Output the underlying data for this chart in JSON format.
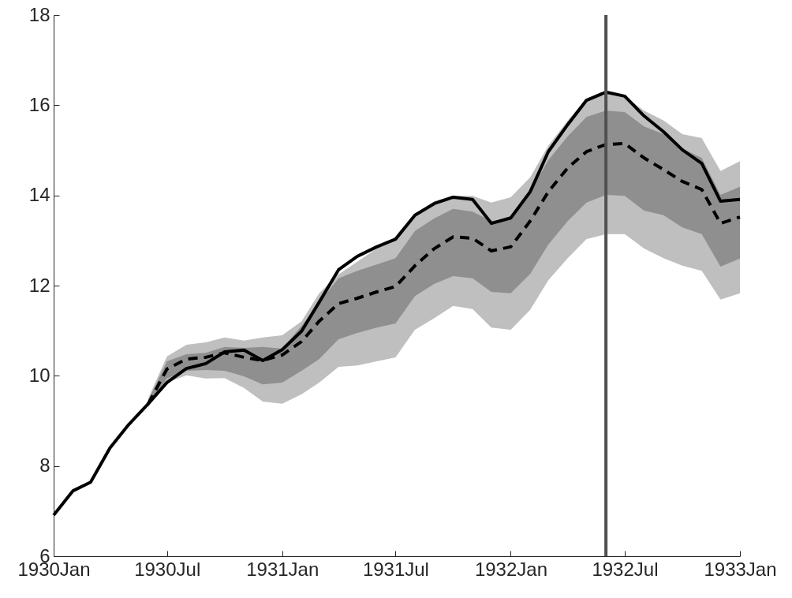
{
  "chart_data": {
    "type": "line",
    "x": [
      "1930-01",
      "1930-02",
      "1930-03",
      "1930-04",
      "1930-05",
      "1930-06",
      "1930-07",
      "1930-08",
      "1930-09",
      "1930-10",
      "1930-11",
      "1930-12",
      "1931-01",
      "1931-02",
      "1931-03",
      "1931-04",
      "1931-05",
      "1931-06",
      "1931-07",
      "1931-08",
      "1931-09",
      "1931-10",
      "1931-11",
      "1931-12",
      "1932-01",
      "1932-02",
      "1932-03",
      "1932-04",
      "1932-05",
      "1932-06",
      "1932-07",
      "1932-08",
      "1932-09",
      "1932-10",
      "1932-11",
      "1932-12",
      "1933-01"
    ],
    "series": [
      {
        "color": "#000000",
        "line_style": "solid",
        "values": [
          6.91,
          7.45,
          7.64,
          8.4,
          8.92,
          9.38,
          9.85,
          10.16,
          10.27,
          10.53,
          10.57,
          10.34,
          10.58,
          10.99,
          11.63,
          12.35,
          12.65,
          12.86,
          13.03,
          13.56,
          13.82,
          13.96,
          13.91,
          13.38,
          13.5,
          14.08,
          14.97,
          15.57,
          16.11,
          16.29,
          16.2,
          15.76,
          15.41,
          15.01,
          14.71,
          13.87,
          13.91
        ],
        "lower": [
          null,
          null,
          null,
          null,
          null,
          9.3,
          9.85,
          10.01,
          9.94,
          9.95,
          9.73,
          9.43,
          9.38,
          9.59,
          9.85,
          10.2,
          10.23,
          10.32,
          10.41,
          11.02,
          11.28,
          11.55,
          11.48,
          11.07,
          11.02,
          11.46,
          12.12,
          12.61,
          13.03,
          13.14,
          13.14,
          12.82,
          12.61,
          12.44,
          12.33,
          11.69,
          11.83
        ],
        "upper": [
          null,
          null,
          null,
          null,
          null,
          9.5,
          10.43,
          10.69,
          10.74,
          10.85,
          10.78,
          10.85,
          10.9,
          11.21,
          11.83,
          12.25,
          12.53,
          12.82,
          13.03,
          13.57,
          13.87,
          13.99,
          13.99,
          13.84,
          13.96,
          14.4,
          15.1,
          15.66,
          16.15,
          16.29,
          16.2,
          15.88,
          15.66,
          15.36,
          15.27,
          14.54,
          14.76
        ]
      },
      {
        "color": "#000000",
        "line_style": "dashed",
        "values": [
          null,
          null,
          null,
          null,
          null,
          9.38,
          10.15,
          10.37,
          10.41,
          10.51,
          10.41,
          10.34,
          10.46,
          10.76,
          11.21,
          11.6,
          11.72,
          11.86,
          11.98,
          12.44,
          12.82,
          13.08,
          13.05,
          12.77,
          12.86,
          13.43,
          14.08,
          14.61,
          14.97,
          15.13,
          15.15,
          14.83,
          14.57,
          14.31,
          14.13,
          13.38,
          13.52
        ],
        "lower": [
          null,
          null,
          null,
          null,
          null,
          9.35,
          9.94,
          10.11,
          10.13,
          10.11,
          9.99,
          9.81,
          9.85,
          10.11,
          10.37,
          10.81,
          10.95,
          11.07,
          11.16,
          11.77,
          12.04,
          12.21,
          12.16,
          11.86,
          11.83,
          12.26,
          12.91,
          13.43,
          13.84,
          14.01,
          13.99,
          13.66,
          13.56,
          13.29,
          13.14,
          12.42,
          12.6
        ],
        "upper": [
          null,
          null,
          null,
          null,
          null,
          9.45,
          10.32,
          10.48,
          10.51,
          10.64,
          10.62,
          10.64,
          10.6,
          11.11,
          11.63,
          12.16,
          12.33,
          12.47,
          12.61,
          13.21,
          13.49,
          13.7,
          13.64,
          13.43,
          13.49,
          14.08,
          14.78,
          15.31,
          15.74,
          15.88,
          15.85,
          15.53,
          15.36,
          15.04,
          14.83,
          14.01,
          14.19
        ]
      }
    ],
    "xlim": [
      "1930-01",
      "1933-01"
    ],
    "xticks": [
      {
        "value": "1930-01",
        "label": "1930Jan"
      },
      {
        "value": "1930-07",
        "label": "1930Jul"
      },
      {
        "value": "1931-01",
        "label": "1931Jan"
      },
      {
        "value": "1931-07",
        "label": "1931Jul"
      },
      {
        "value": "1932-01",
        "label": "1932Jan"
      },
      {
        "value": "1932-07",
        "label": "1932Jul"
      },
      {
        "value": "1933-01",
        "label": "1933Jan"
      }
    ],
    "ylim": [
      6,
      18
    ],
    "yticks": [
      6,
      8,
      10,
      12,
      14,
      16,
      18
    ],
    "ref_lines": [
      {
        "axis": "x",
        "value": "1932-06",
        "color": "#505050"
      }
    ],
    "grid": false,
    "marker": "none"
  }
}
